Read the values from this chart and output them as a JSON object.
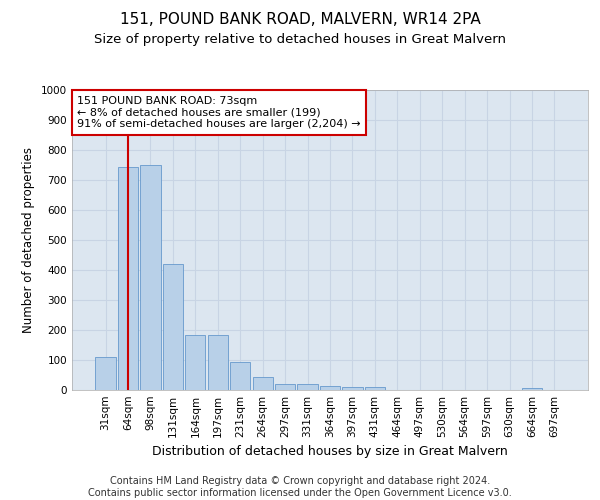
{
  "title": "151, POUND BANK ROAD, MALVERN, WR14 2PA",
  "subtitle": "Size of property relative to detached houses in Great Malvern",
  "xlabel": "Distribution of detached houses by size in Great Malvern",
  "ylabel": "Number of detached properties",
  "categories": [
    "31sqm",
    "64sqm",
    "98sqm",
    "131sqm",
    "164sqm",
    "197sqm",
    "231sqm",
    "264sqm",
    "297sqm",
    "331sqm",
    "364sqm",
    "397sqm",
    "431sqm",
    "464sqm",
    "497sqm",
    "530sqm",
    "564sqm",
    "597sqm",
    "630sqm",
    "664sqm",
    "697sqm"
  ],
  "values": [
    110,
    745,
    750,
    420,
    185,
    185,
    95,
    42,
    20,
    20,
    15,
    10,
    10,
    0,
    0,
    0,
    0,
    0,
    0,
    8,
    0
  ],
  "bar_color": "#b8d0e8",
  "bar_edge_color": "#6699cc",
  "vline_x": 1,
  "vline_color": "#cc0000",
  "annotation_text": "151 POUND BANK ROAD: 73sqm\n← 8% of detached houses are smaller (199)\n91% of semi-detached houses are larger (2,204) →",
  "annotation_box_color": "#ffffff",
  "annotation_box_edge": "#cc0000",
  "ylim": [
    0,
    1000
  ],
  "yticks": [
    0,
    100,
    200,
    300,
    400,
    500,
    600,
    700,
    800,
    900,
    1000
  ],
  "grid_color": "#c8d4e4",
  "background_color": "#dce6f0",
  "footer": "Contains HM Land Registry data © Crown copyright and database right 2024.\nContains public sector information licensed under the Open Government Licence v3.0.",
  "title_fontsize": 11,
  "subtitle_fontsize": 9.5,
  "xlabel_fontsize": 9,
  "ylabel_fontsize": 8.5,
  "footer_fontsize": 7,
  "tick_fontsize": 7.5,
  "annot_fontsize": 8
}
